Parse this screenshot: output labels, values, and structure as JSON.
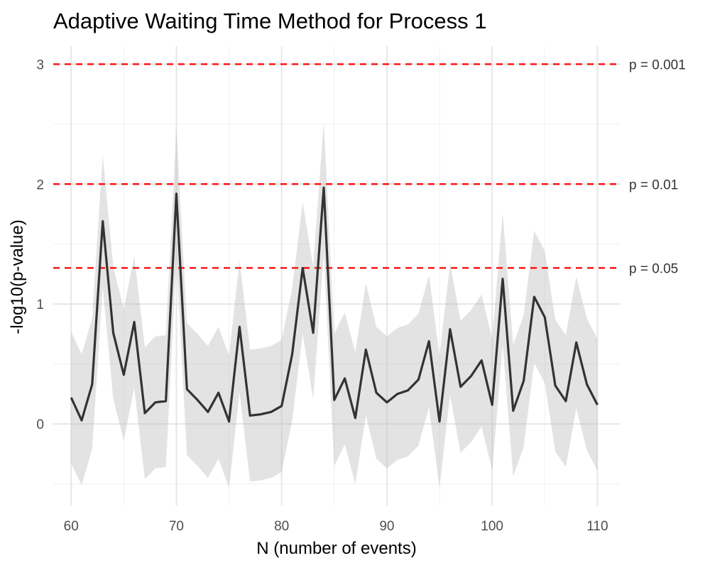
{
  "chart_data": {
    "type": "line",
    "title": "Adaptive Waiting Time Method for Process 1",
    "xlabel": "N (number of events)",
    "ylabel": "-log10(p-value)",
    "xlim": [
      58.3,
      112.2
    ],
    "ylim": [
      -0.68,
      3.15
    ],
    "xticks": [
      60,
      70,
      80,
      90,
      100,
      110
    ],
    "yticks": [
      0,
      1,
      2,
      3
    ],
    "grid": true,
    "legend": "none",
    "x": [
      60,
      61,
      62,
      63,
      64,
      65,
      66,
      67,
      68,
      69,
      70,
      71,
      72,
      73,
      74,
      75,
      76,
      77,
      78,
      79,
      80,
      81,
      82,
      83,
      84,
      85,
      86,
      87,
      88,
      89,
      90,
      91,
      92,
      93,
      94,
      95,
      96,
      97,
      98,
      99,
      100,
      101,
      102,
      103,
      104,
      105,
      106,
      107,
      108,
      109,
      110
    ],
    "series": [
      {
        "color": "#333333",
        "values": [
          0.22,
          0.03,
          0.33,
          1.69,
          0.76,
          0.41,
          0.85,
          0.09,
          0.18,
          0.19,
          1.92,
          0.29,
          0.2,
          0.1,
          0.26,
          0.02,
          0.81,
          0.07,
          0.08,
          0.1,
          0.15,
          0.58,
          1.3,
          0.76,
          1.97,
          0.2,
          0.38,
          0.05,
          0.62,
          0.26,
          0.18,
          0.25,
          0.28,
          0.37,
          0.69,
          0.02,
          0.79,
          0.31,
          0.4,
          0.53,
          0.16,
          1.21,
          0.11,
          0.36,
          1.06,
          0.89,
          0.32,
          0.19,
          0.68,
          0.33,
          0.16
        ],
        "lower": [
          -0.33,
          -0.51,
          -0.21,
          1.14,
          0.21,
          -0.14,
          0.3,
          -0.46,
          -0.37,
          -0.36,
          1.37,
          -0.26,
          -0.35,
          -0.45,
          -0.29,
          -0.53,
          0.26,
          -0.48,
          -0.47,
          -0.45,
          -0.4,
          0.03,
          0.75,
          0.21,
          1.42,
          -0.35,
          -0.17,
          -0.5,
          0.07,
          -0.29,
          -0.37,
          -0.3,
          -0.27,
          -0.18,
          0.14,
          -0.53,
          0.24,
          -0.24,
          -0.15,
          -0.02,
          -0.39,
          0.66,
          -0.44,
          -0.19,
          0.51,
          0.34,
          -0.23,
          -0.36,
          0.13,
          -0.22,
          -0.39
        ],
        "upper": [
          0.77,
          0.58,
          0.88,
          2.24,
          1.31,
          0.96,
          1.4,
          0.64,
          0.73,
          0.74,
          2.47,
          0.84,
          0.75,
          0.65,
          0.81,
          0.57,
          1.36,
          0.62,
          0.63,
          0.65,
          0.7,
          1.13,
          1.85,
          1.31,
          2.52,
          0.75,
          0.93,
          0.6,
          1.17,
          0.81,
          0.73,
          0.8,
          0.83,
          0.92,
          1.24,
          0.57,
          1.34,
          0.86,
          0.95,
          1.08,
          0.71,
          1.76,
          0.66,
          0.91,
          1.61,
          1.44,
          0.87,
          0.74,
          1.23,
          0.88,
          0.71
        ]
      }
    ],
    "band_color": "#bdbdbd",
    "reference_lines": [
      {
        "y": 3.0,
        "label": "p = 0.001",
        "color": "#ff0000"
      },
      {
        "y": 2.0,
        "label": "p = 0.01",
        "color": "#ff0000"
      },
      {
        "y": 1.30103,
        "label": "p = 0.05",
        "color": "#ff0000"
      }
    ]
  }
}
